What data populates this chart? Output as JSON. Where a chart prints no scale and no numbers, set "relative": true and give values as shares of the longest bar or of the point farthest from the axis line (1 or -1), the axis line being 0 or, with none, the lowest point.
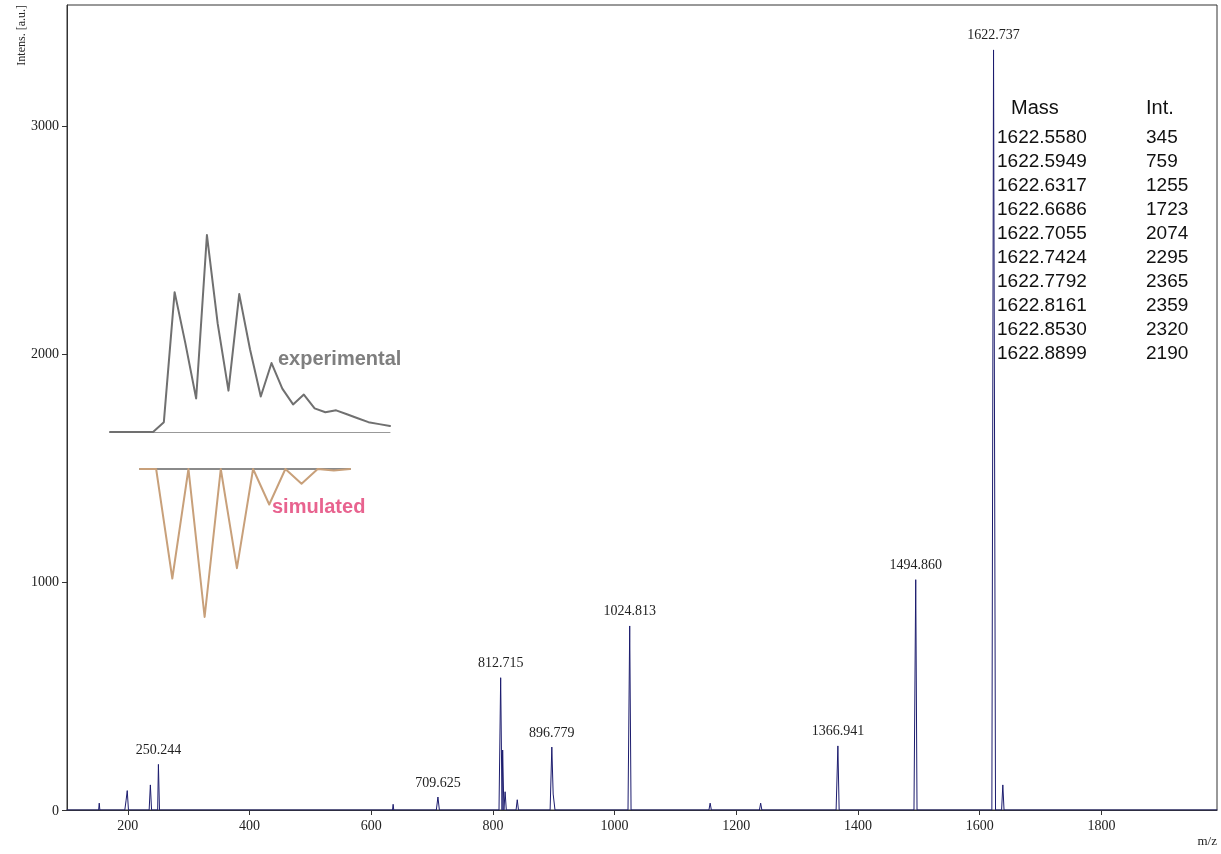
{
  "chart_data": [
    {
      "type": "line",
      "xlabel": "m/z",
      "ylabel": "Intens. [a.u.]",
      "xlim": [
        100,
        1990
      ],
      "xticks": [
        200,
        400,
        600,
        800,
        1000,
        1200,
        1400,
        1600,
        1800
      ],
      "ylim": [
        0,
        3530
      ],
      "yticks": [
        0,
        1000,
        2000,
        3000
      ],
      "marker": "none",
      "series": [
        {
          "color": "#1c1c6e",
          "x": [
            100,
            152,
            153,
            154,
            195,
            197,
            199,
            201,
            235,
            237,
            239,
            249,
            250.244,
            252,
            635,
            636,
            637,
            707,
            709.625,
            712,
            810,
            812.715,
            815,
            816,
            818,
            820,
            822,
            838,
            840,
            842,
            894,
            896.779,
            899,
            902,
            1022,
            1024.813,
            1027,
            1155,
            1157,
            1159,
            1238,
            1240,
            1242,
            1364,
            1366.941,
            1369,
            1492,
            1494.86,
            1497,
            1620,
            1622.737,
            1626,
            1636,
            1638,
            1640,
            1990
          ],
          "values": [
            0,
            0,
            30,
            0,
            0,
            40,
            85,
            0,
            0,
            110,
            0,
            0,
            200,
            0,
            0,
            25,
            0,
            0,
            57,
            0,
            0,
            580,
            0,
            263,
            0,
            80,
            0,
            0,
            45,
            0,
            0,
            276,
            70,
            0,
            0,
            807,
            0,
            0,
            30,
            0,
            0,
            30,
            0,
            0,
            281,
            0,
            0,
            1010,
            0,
            0,
            3333,
            0,
            0,
            110,
            0,
            0
          ]
        }
      ],
      "annotations": [
        {
          "text": "250.244",
          "x": 250.244,
          "y": 200
        },
        {
          "text": "709.625",
          "x": 709.625,
          "y": 57
        },
        {
          "text": "812.715",
          "x": 812.715,
          "y": 580
        },
        {
          "text": "896.779",
          "x": 896.779,
          "y": 276
        },
        {
          "text": "1024.813",
          "x": 1024.813,
          "y": 807
        },
        {
          "text": "1366.941",
          "x": 1366.941,
          "y": 281
        },
        {
          "text": "1494.860",
          "x": 1494.86,
          "y": 1010
        },
        {
          "text": "1622.737",
          "x": 1622.737,
          "y": 3333
        }
      ]
    },
    {
      "type": "line",
      "title": "experimental",
      "relative": true,
      "marker": "none",
      "categories": [
        null,
        null,
        null,
        null,
        null,
        null,
        null,
        null,
        null,
        null,
        null,
        null,
        null,
        null,
        null,
        null,
        null,
        null,
        null,
        null,
        null,
        null,
        null,
        null,
        null,
        null,
        null
      ],
      "series": [
        {
          "color": "#707070",
          "values": [
            0,
            0,
            0,
            0,
            0,
            0.05,
            0.71,
            0.45,
            0.17,
            1,
            0.55,
            0.21,
            0.7,
            0.42,
            0.18,
            0.35,
            0.22,
            0.14,
            0.19,
            0.12,
            0.1,
            0.11,
            0.09,
            0.07,
            0.05,
            0.04,
            0.03
          ]
        }
      ]
    },
    {
      "type": "line",
      "title": "simulated",
      "relative": true,
      "marker": "none",
      "categories": [
        null,
        null,
        null,
        null,
        null,
        null,
        null,
        null,
        null,
        null,
        null,
        null,
        null,
        null
      ],
      "series": [
        {
          "color": "#c8a07a",
          "values": [
            0,
            0,
            -0.74,
            0,
            -1,
            0,
            -0.67,
            0,
            -0.24,
            0,
            -0.1,
            0,
            -0.01,
            0
          ]
        }
      ]
    },
    {
      "type": "other",
      "annotations": [
        "Mass",
        "Int.",
        "1622.5580",
        "345",
        "1622.5949",
        "759",
        "1622.6317",
        "1255",
        "1622.6686",
        "1723",
        "1622.7055",
        "2074",
        "1622.7424",
        "2295",
        "1622.7792",
        "2365",
        "1622.8161",
        "2359",
        "1622.8530",
        "2320",
        "1622.8899",
        "2190"
      ]
    }
  ]
}
